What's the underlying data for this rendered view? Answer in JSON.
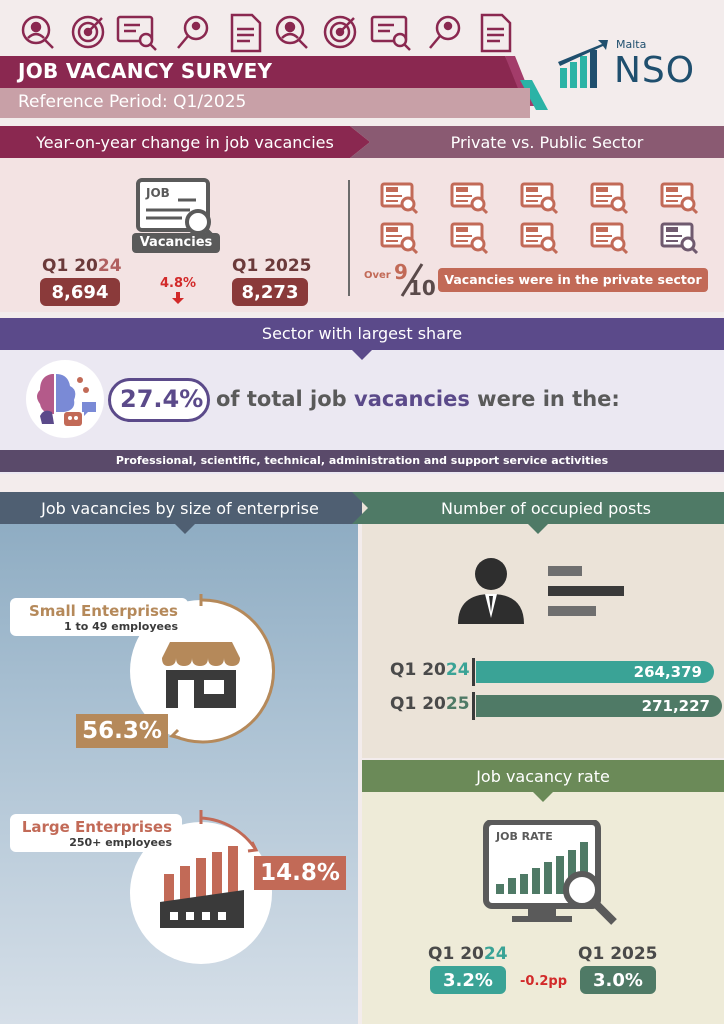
{
  "header": {
    "title": "JOB VACANCY SURVEY",
    "reference_period": "Reference Period: Q1/2025",
    "logo_small": "Malta",
    "logo_main": "NSO",
    "top_icons": [
      "people-search-icon",
      "target-icon",
      "job-search-icon",
      "magnifier-icon",
      "cv-icon",
      "people-search-icon",
      "target-icon",
      "job-search-icon",
      "magnifier-icon",
      "cv-icon"
    ]
  },
  "yoy": {
    "heading": "Year-on-year change in job vacancies",
    "icon_label": "Vacancies",
    "icon_text": "JOB",
    "prev_year_prefix": "Q1 20",
    "prev_year_suffix": "24",
    "prev_value": "8,694",
    "curr_year": "Q1 2025",
    "curr_value": "8,273",
    "change": "4.8%"
  },
  "private": {
    "heading": "Private vs. Public Sector",
    "over_label": "Over",
    "fraction_num": "9",
    "fraction_den": "10",
    "statement": "Vacancies were in the private sector"
  },
  "sector": {
    "heading": "Sector with largest share",
    "percent": "27.4%",
    "text_part1": "of total job ",
    "text_highlight": "vacancies",
    "text_part2": " were in the:",
    "sector_name": "Professional, scientific, technical, administration and support service activities"
  },
  "size": {
    "heading": "Job vacancies by size of enterprise",
    "small_title": "Small Enterprises",
    "small_sub": "1 to 49 employees",
    "small_percent": "56.3%",
    "large_title": "Large Enterprises",
    "large_sub": "250+ employees",
    "large_percent": "14.8%"
  },
  "posts": {
    "heading": "Number of occupied posts",
    "rows": [
      {
        "year_prefix": "Q1 20",
        "year_suffix": "24",
        "value": "264,379"
      },
      {
        "year_prefix": "Q1 20",
        "year_suffix": "25",
        "value": "271,227"
      }
    ]
  },
  "rate": {
    "heading": "Job vacancy rate",
    "icon_text": "JOB RATE",
    "prev_year_prefix": "Q1 20",
    "prev_year_suffix": "24",
    "prev_value": "3.2%",
    "curr_year": "Q1 2025",
    "curr_value": "3.0%",
    "change": "-0.2pp"
  },
  "colors": {
    "maroon": "#8a2850",
    "brown_red": "#9a3b3b",
    "mauve": "#8a5a72",
    "purple": "#5b4a8a",
    "teal": "#3aa396",
    "dark_green": "#4f7a66",
    "olive": "#6b8a58",
    "tan": "#b5895a",
    "salmon": "#c26a57"
  }
}
